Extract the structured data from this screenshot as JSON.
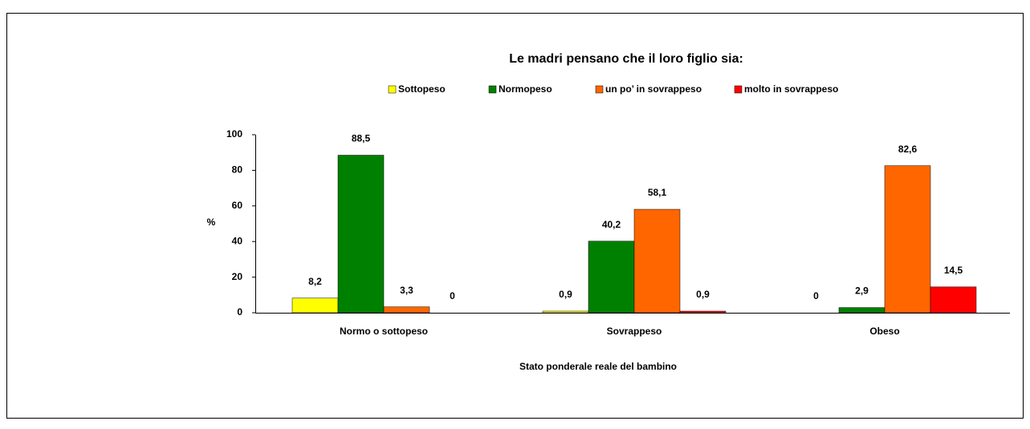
{
  "chart_data": {
    "type": "bar",
    "title": "Le madri pensano che il loro figlio sia:",
    "x_label": "Stato ponderale reale del bambino",
    "y_label": "%",
    "categories": [
      "Normo o sottopeso",
      "Sovrappeso",
      "Obeso"
    ],
    "series": [
      {
        "name": "Sottopeso",
        "color": "#ffff00",
        "values": [
          8.2,
          0.9,
          0
        ],
        "value_labels": [
          "8,2",
          "0,9",
          "0"
        ]
      },
      {
        "name": "Normopeso",
        "color": "#008000",
        "values": [
          88.5,
          40.2,
          2.9
        ],
        "value_labels": [
          "88,5",
          "40,2",
          "2,9"
        ]
      },
      {
        "name": "un po’ in sovrappeso",
        "color": "#ff6600",
        "values": [
          3.3,
          58.1,
          82.6
        ],
        "value_labels": [
          "3,3",
          "58,1",
          "82,6"
        ]
      },
      {
        "name": "molto in sovrappeso",
        "color": "#ff0000",
        "values": [
          0,
          0.9,
          14.5
        ],
        "value_labels": [
          "0",
          "0,9",
          "14,5"
        ]
      }
    ],
    "ylim": [
      0,
      100
    ],
    "yticks": [
      0,
      20,
      40,
      60,
      80,
      100
    ],
    "grid": false,
    "legend": "top"
  }
}
